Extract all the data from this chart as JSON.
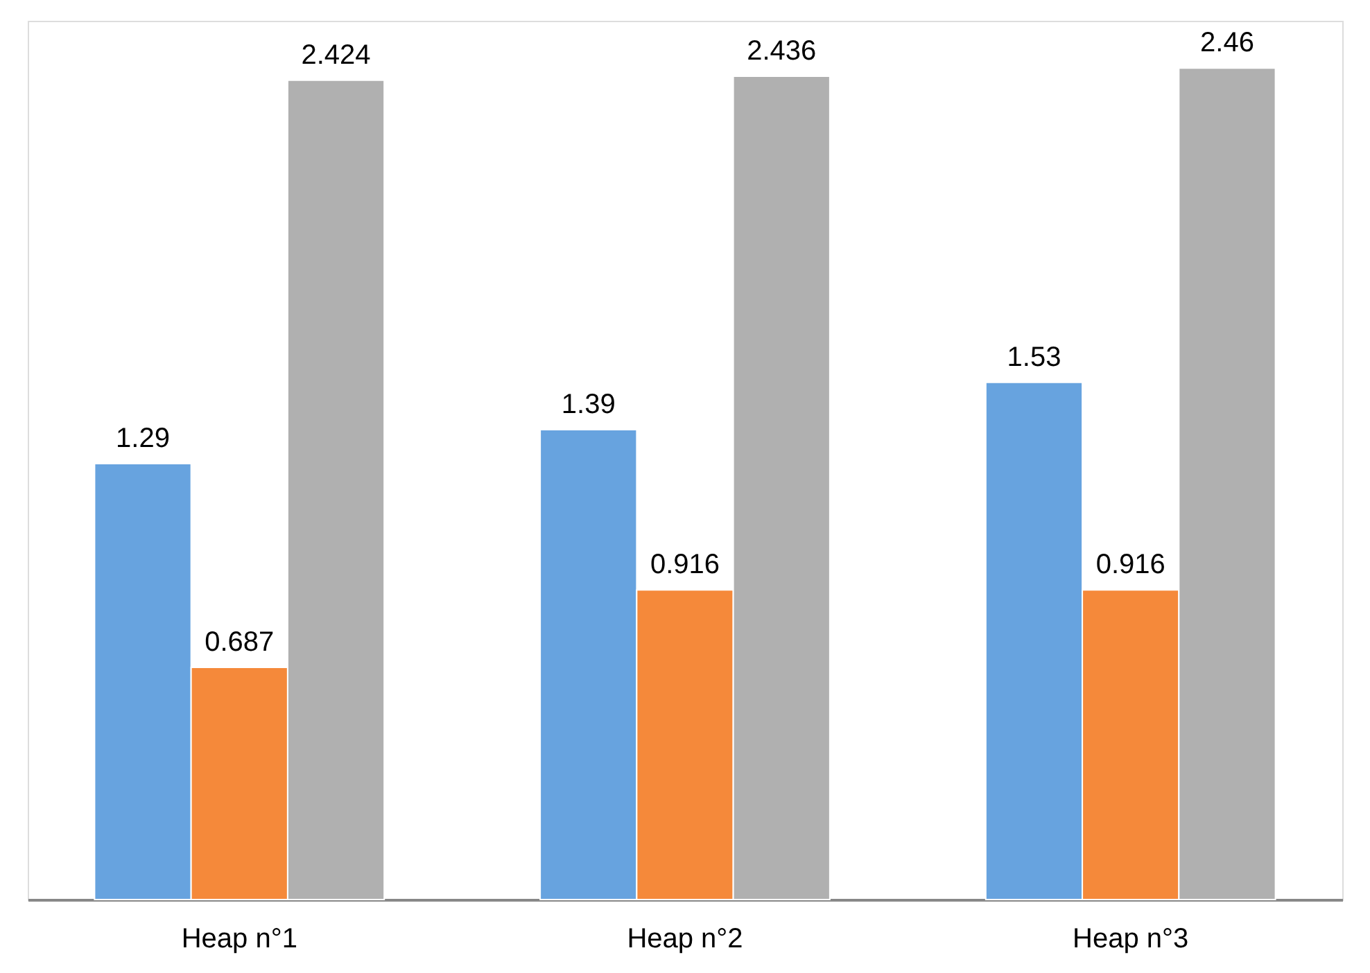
{
  "chart_data": {
    "type": "bar",
    "categories": [
      "Heap n°1",
      "Heap n°2",
      "Heap n°3"
    ],
    "series": [
      {
        "color": "#67a3df",
        "values": [
          1.29,
          1.39,
          1.53
        ]
      },
      {
        "color": "#f5893a",
        "values": [
          0.687,
          0.916,
          0.916
        ]
      },
      {
        "color": "#b0b0b0",
        "values": [
          2.424,
          2.436,
          2.46
        ]
      }
    ],
    "data_labels": true,
    "grid": false,
    "legend": false
  }
}
